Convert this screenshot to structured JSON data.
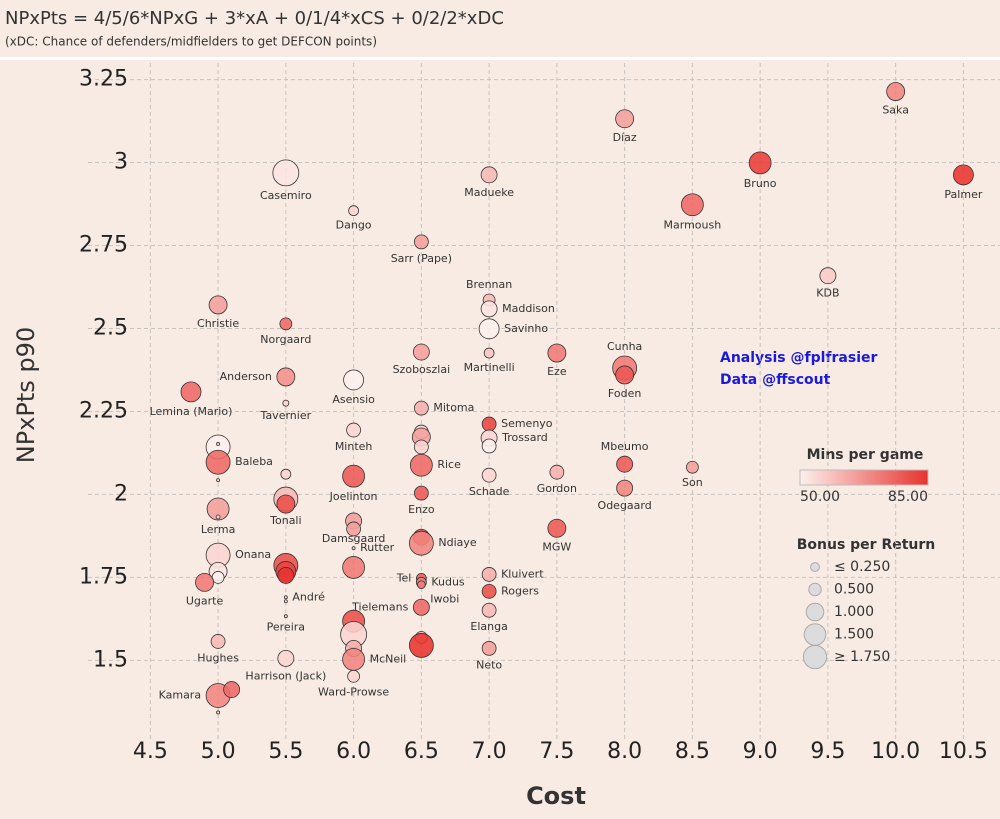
{
  "chart_data": {
    "type": "scatter",
    "title": "NPxPts = 4/5/6*NPxG + 3*xA + 0/1/4*xCS + 0/2/2*xDC",
    "subtitle": "(xDC: Chance of defenders/midfielders to get DEFCON points)",
    "x_label": "Cost",
    "y_label": "NPxPts p90",
    "annotations": [
      "Analysis @fplfrasier",
      "Data @ffscout"
    ],
    "labels": [
      "Saka",
      "Díaz",
      "Bruno",
      "Palmer",
      "Madueke",
      "Casemiro",
      "Marmoush",
      "Dango",
      "Sarr (Pape)",
      "KDB",
      "Brennan",
      "Maddison",
      "Savinho",
      "Christie",
      "Norgaard",
      "Szoboszlai",
      "Martinelli",
      "Eze",
      "Cunha",
      "Foden",
      "Anderson",
      "Asensio",
      "Lemina (Mario)",
      "Tavernier",
      "Mitoma",
      "Semenyo",
      "Trossard",
      null,
      "Minteh",
      null,
      null,
      null,
      "Rice",
      null,
      "Baleba",
      null,
      null,
      null,
      "Joelinton",
      "Schade",
      "Gordon",
      "Mbeumo",
      "Son",
      "Odegaard",
      "Enzo",
      "Tonali",
      null,
      "Lerma",
      null,
      "Damsgaard",
      null,
      "MGW",
      null,
      "Ndiaye",
      "Rutter",
      "Onana",
      null,
      null,
      null,
      null,
      null,
      null,
      "Ugarte",
      "Tel",
      "Kudus",
      "Iwobi",
      "Kluivert",
      "Rogers",
      "André",
      null,
      "Tielemans",
      "Elanga",
      "Pereira",
      null,
      null,
      null,
      "McNeil",
      null,
      null,
      "Neto",
      "Hughes",
      "Harrison (Jack)",
      "Ward-Prowse",
      "Kamara",
      null,
      null
    ],
    "x": [
      10.0,
      8.0,
      9.0,
      10.5,
      7.0,
      5.5,
      8.5,
      6.0,
      6.5,
      9.5,
      7.0,
      7.0,
      7.0,
      5.0,
      5.5,
      6.5,
      7.0,
      7.5,
      8.0,
      8.0,
      5.5,
      6.0,
      4.8,
      5.5,
      6.5,
      7.0,
      7.0,
      7.0,
      6.0,
      6.5,
      6.5,
      6.5,
      6.5,
      5.0,
      5.0,
      5.0,
      5.0,
      5.5,
      6.0,
      7.0,
      7.5,
      8.0,
      8.5,
      8.0,
      6.5,
      5.5,
      5.5,
      5.0,
      5.0,
      6.0,
      6.0,
      7.5,
      6.5,
      6.5,
      6.0,
      5.0,
      5.5,
      5.5,
      5.5,
      6.0,
      5.0,
      5.0,
      4.9,
      6.5,
      6.5,
      6.5,
      7.0,
      7.0,
      5.5,
      5.5,
      6.5,
      7.0,
      5.5,
      6.0,
      6.0,
      6.0,
      6.0,
      6.5,
      6.5,
      7.0,
      5.0,
      5.5,
      6.0,
      5.0,
      5.1,
      5.0
    ],
    "values": [
      3.214,
      3.132,
      2.999,
      2.963,
      2.963,
      2.969,
      2.873,
      2.855,
      2.761,
      2.659,
      2.586,
      2.559,
      2.499,
      2.571,
      2.514,
      2.429,
      2.426,
      2.426,
      2.381,
      2.36,
      2.354,
      2.345,
      2.309,
      2.275,
      2.26,
      2.212,
      2.17,
      2.146,
      2.194,
      2.188,
      2.173,
      2.143,
      2.088,
      2.143,
      2.097,
      2.152,
      2.043,
      2.061,
      2.055,
      2.058,
      2.067,
      2.091,
      2.082,
      2.019,
      2.004,
      1.986,
      1.971,
      1.956,
      1.932,
      1.92,
      1.896,
      1.898,
      1.871,
      1.853,
      1.838,
      1.817,
      1.786,
      1.768,
      1.756,
      1.78,
      1.768,
      1.75,
      1.735,
      1.747,
      1.735,
      1.728,
      1.759,
      1.708,
      1.69,
      1.678,
      1.66,
      1.651,
      1.633,
      1.618,
      1.578,
      1.536,
      1.503,
      1.569,
      1.545,
      1.536,
      1.557,
      1.506,
      1.452,
      1.394,
      1.412,
      1.343
    ],
    "sizes": [
      1.05,
      1.05,
      1.56,
      1.29,
      0.83,
      2.18,
      1.56,
      0.32,
      0.63,
      0.83,
      0.46,
      0.83,
      1.29,
      1.05,
      0.46,
      0.83,
      0.32,
      1.05,
      1.86,
      1.05,
      1.05,
      1.29,
      1.29,
      0.12,
      0.63,
      0.63,
      0.83,
      0.63,
      0.63,
      0.63,
      1.05,
      0.63,
      1.56,
      1.86,
      1.86,
      0.03,
      0.03,
      0.32,
      1.56,
      0.63,
      0.63,
      0.83,
      0.46,
      0.83,
      0.63,
      1.86,
      1.05,
      1.56,
      0.05,
      0.83,
      0.63,
      1.05,
      0.83,
      1.86,
      0.03,
      1.86,
      1.86,
      1.29,
      0.83,
      1.56,
      1.05,
      0.46,
      1.05,
      0.32,
      0.32,
      0.2,
      0.63,
      0.63,
      0.03,
      0.03,
      0.83,
      0.63,
      0.03,
      1.56,
      2.18,
      0.83,
      1.56,
      0.46,
      1.86,
      0.63,
      0.63,
      0.83,
      0.46,
      1.86,
      0.83,
      0.03
    ],
    "mins": [
      70,
      65,
      83,
      85,
      60,
      52,
      75,
      55,
      65,
      57,
      60,
      52,
      50,
      65,
      75,
      65,
      58,
      72,
      72,
      78,
      68,
      50,
      75,
      55,
      62,
      82,
      55,
      50,
      55,
      55,
      65,
      55,
      75,
      50,
      75,
      55,
      55,
      55,
      78,
      55,
      62,
      78,
      65,
      70,
      78,
      60,
      80,
      65,
      55,
      65,
      65,
      78,
      80,
      70,
      55,
      55,
      80,
      82,
      85,
      72,
      52,
      50,
      72,
      78,
      70,
      72,
      62,
      80,
      55,
      55,
      75,
      60,
      55,
      80,
      55,
      62,
      70,
      60,
      85,
      65,
      60,
      55,
      55,
      70,
      75,
      55
    ],
    "xlim": [
      4.04,
      10.77
    ],
    "ylim": [
      1.26,
      3.3
    ],
    "xticks": [
      4.5,
      {
        "value": 5,
        "label": "5.0"
      },
      5.5,
      {
        "value": 6,
        "label": "6.0"
      },
      6.5,
      {
        "value": 7,
        "label": "7.0"
      },
      7.5,
      {
        "value": 8,
        "label": "8.0"
      },
      8.5,
      {
        "value": 9,
        "label": "9.0"
      },
      9.5,
      {
        "value": 10,
        "label": "10.0"
      },
      10.5
    ],
    "yticks": [
      1.5,
      1.75,
      2,
      2.25,
      2.5,
      2.75,
      3,
      3.25
    ],
    "grid": true,
    "color_legend": {
      "title": "Mins per game",
      "colors": [
        "#fdf0ed",
        "#e8332f"
      ],
      "ticks": [
        {
          "value": 50,
          "label": "50.00"
        },
        {
          "value": 85,
          "label": "85.00"
        }
      ]
    },
    "size_legend": {
      "title": "Bonus per Return",
      "values": [
        0.25,
        0.5,
        1,
        1.5,
        1.75
      ],
      "value_labels": [
        "≤ 0.250",
        "0.500",
        "1.000",
        "1.500",
        "≥ 1.750"
      ]
    }
  }
}
